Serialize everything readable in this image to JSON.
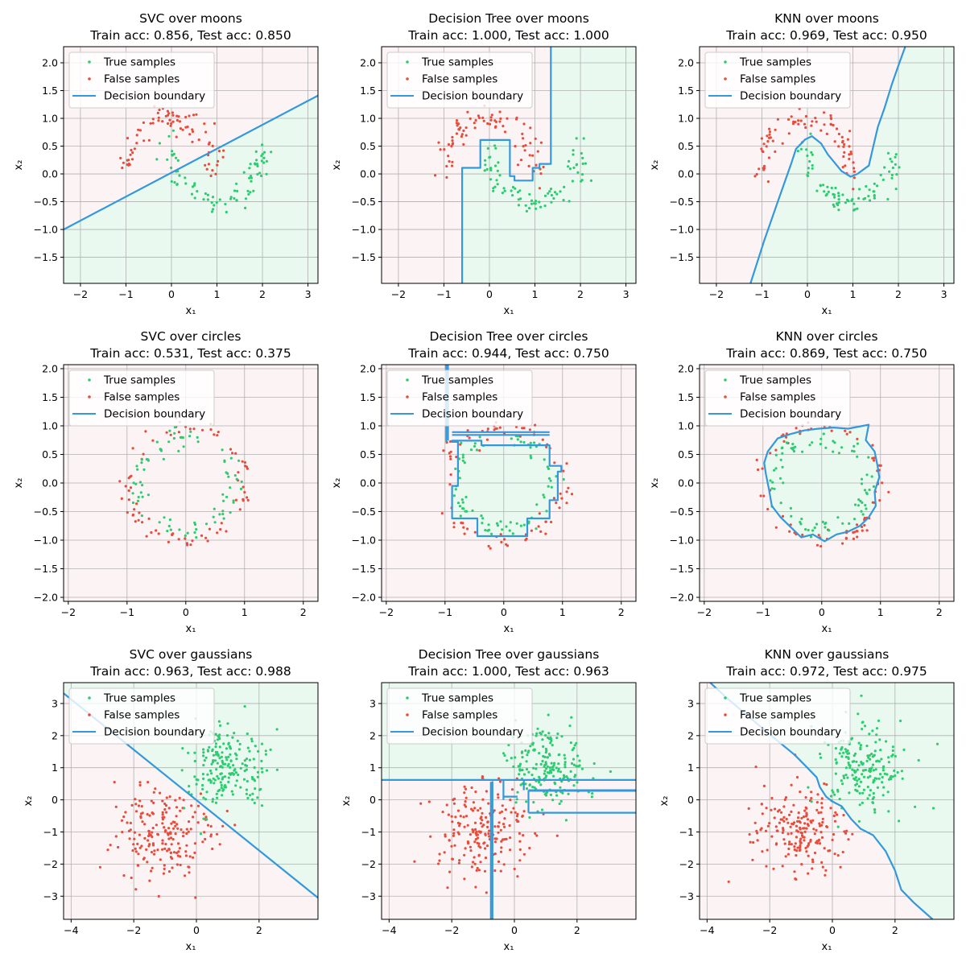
{
  "legend": {
    "true_label": "True samples",
    "false_label": "False samples",
    "boundary_label": "Decision boundary"
  },
  "colors": {
    "true": "#2ecc71",
    "false": "#e74c3c",
    "boundary": "#3498db",
    "true_region": "#eaf9f0",
    "false_region": "#fcf4f4",
    "grid": "#b0b0b0"
  },
  "chart_data": [
    {
      "type": "scatter",
      "title_line1": "SVC over moons",
      "title_line2": "Train acc: 0.856, Test acc: 0.850",
      "xlabel": "x₁",
      "ylabel": "x₂",
      "xlim": [
        -2.37,
        3.22
      ],
      "ylim": [
        -1.97,
        2.29
      ],
      "xticks": [
        -2,
        -1,
        0,
        1,
        2,
        3
      ],
      "yticks": [
        -1.5,
        -1.0,
        -0.5,
        0.0,
        0.5,
        1.0,
        1.5,
        2.0
      ],
      "ytick_decimals": 1,
      "dataset": "moons",
      "boundary_lines": [
        [
          [
            -2.37,
            -1.0
          ],
          [
            3.22,
            1.41
          ]
        ]
      ],
      "true_region": [
        [
          -2.37,
          -1.97
        ],
        [
          3.22,
          -1.97
        ],
        [
          3.22,
          1.41
        ],
        [
          -2.37,
          -1.0
        ]
      ]
    },
    {
      "type": "scatter",
      "title_line1": "Decision Tree over moons",
      "title_line2": "Train acc: 1.000, Test acc: 1.000",
      "xlabel": "x₁",
      "ylabel": "x₂",
      "xlim": [
        -2.37,
        3.22
      ],
      "ylim": [
        -1.97,
        2.29
      ],
      "xticks": [
        -2,
        -1,
        0,
        1,
        2,
        3
      ],
      "yticks": [
        -1.5,
        -1.0,
        -0.5,
        0.0,
        0.5,
        1.0,
        1.5,
        2.0
      ],
      "ytick_decimals": 1,
      "dataset": "moons",
      "boundary_lines": [
        [
          [
            -0.6,
            -1.97
          ],
          [
            -0.6,
            0.11
          ],
          [
            -0.2,
            0.11
          ],
          [
            -0.2,
            0.61
          ],
          [
            0.45,
            0.61
          ],
          [
            0.45,
            -0.04
          ],
          [
            0.55,
            -0.04
          ],
          [
            0.55,
            -0.12
          ],
          [
            0.95,
            -0.12
          ],
          [
            0.95,
            0.11
          ],
          [
            1.1,
            0.11
          ],
          [
            1.1,
            0.18
          ],
          [
            1.35,
            0.18
          ],
          [
            1.35,
            2.29
          ]
        ]
      ],
      "true_region": [
        [
          -0.6,
          -1.97
        ],
        [
          -0.6,
          0.11
        ],
        [
          -0.2,
          0.11
        ],
        [
          -0.2,
          0.61
        ],
        [
          0.45,
          0.61
        ],
        [
          0.45,
          -0.04
        ],
        [
          0.55,
          -0.04
        ],
        [
          0.55,
          -0.12
        ],
        [
          0.95,
          -0.12
        ],
        [
          0.95,
          0.11
        ],
        [
          1.1,
          0.11
        ],
        [
          1.1,
          0.18
        ],
        [
          1.35,
          0.18
        ],
        [
          1.35,
          2.29
        ],
        [
          3.22,
          2.29
        ],
        [
          3.22,
          -1.97
        ]
      ]
    },
    {
      "type": "scatter",
      "title_line1": "KNN over moons",
      "title_line2": "Train acc: 0.969, Test acc: 0.950",
      "xlabel": "x₁",
      "ylabel": "x₂",
      "xlim": [
        -2.37,
        3.22
      ],
      "ylim": [
        -1.97,
        2.29
      ],
      "xticks": [
        -2,
        -1,
        0,
        1,
        2,
        3
      ],
      "yticks": [
        -1.5,
        -1.0,
        -0.5,
        0.0,
        0.5,
        1.0,
        1.5,
        2.0
      ],
      "ytick_decimals": 1,
      "dataset": "moons",
      "boundary_lines": [
        [
          [
            -1.25,
            -1.97
          ],
          [
            -0.95,
            -1.2
          ],
          [
            -0.65,
            -0.5
          ],
          [
            -0.5,
            -0.15
          ],
          [
            -0.35,
            0.2
          ],
          [
            -0.25,
            0.45
          ],
          [
            -0.05,
            0.62
          ],
          [
            0.1,
            0.68
          ],
          [
            0.3,
            0.55
          ],
          [
            0.45,
            0.35
          ],
          [
            0.6,
            0.2
          ],
          [
            0.75,
            0.05
          ],
          [
            0.95,
            -0.05
          ],
          [
            1.1,
            0.0
          ],
          [
            1.35,
            0.15
          ],
          [
            1.45,
            0.5
          ],
          [
            1.55,
            0.85
          ],
          [
            1.7,
            1.2
          ],
          [
            1.85,
            1.6
          ],
          [
            2.0,
            1.95
          ],
          [
            2.15,
            2.29
          ]
        ]
      ],
      "true_region": [
        [
          -1.25,
          -1.97
        ],
        [
          -0.95,
          -1.2
        ],
        [
          -0.65,
          -0.5
        ],
        [
          -0.5,
          -0.15
        ],
        [
          -0.35,
          0.2
        ],
        [
          -0.25,
          0.45
        ],
        [
          -0.05,
          0.62
        ],
        [
          0.1,
          0.68
        ],
        [
          0.3,
          0.55
        ],
        [
          0.45,
          0.35
        ],
        [
          0.6,
          0.2
        ],
        [
          0.75,
          0.05
        ],
        [
          0.95,
          -0.05
        ],
        [
          1.1,
          0.0
        ],
        [
          1.35,
          0.15
        ],
        [
          1.45,
          0.5
        ],
        [
          1.55,
          0.85
        ],
        [
          1.7,
          1.2
        ],
        [
          1.85,
          1.6
        ],
        [
          2.0,
          1.95
        ],
        [
          2.15,
          2.29
        ],
        [
          3.22,
          2.29
        ],
        [
          3.22,
          -1.97
        ]
      ]
    },
    {
      "type": "scatter",
      "title_line1": "SVC over circles",
      "title_line2": "Train acc: 0.531, Test acc: 0.375",
      "xlabel": "x₁",
      "ylabel": "x₂",
      "xlim": [
        -2.08,
        2.25
      ],
      "ylim": [
        -2.07,
        2.07
      ],
      "xticks": [
        -2,
        -1,
        0,
        1,
        2
      ],
      "yticks": [
        -2.0,
        -1.5,
        -1.0,
        -0.5,
        0.0,
        0.5,
        1.0,
        1.5,
        2.0
      ],
      "ytick_decimals": 1,
      "dataset": "circles",
      "boundary_lines": [],
      "true_region": []
    },
    {
      "type": "scatter",
      "title_line1": "Decision Tree over circles",
      "title_line2": "Train acc: 0.944, Test acc: 0.750",
      "xlabel": "x₁",
      "ylabel": "x₂",
      "xlim": [
        -2.08,
        2.25
      ],
      "ylim": [
        -2.07,
        2.07
      ],
      "xticks": [
        -2,
        -1,
        0,
        1,
        2
      ],
      "yticks": [
        -2.0,
        -1.5,
        -1.0,
        -0.5,
        0.0,
        0.5,
        1.0,
        1.5,
        2.0
      ],
      "ytick_decimals": 1,
      "dataset": "circles",
      "boundary_lines": [
        [
          [
            -0.98,
            2.07
          ],
          [
            -0.98,
            0.72
          ]
        ],
        [
          [
            -0.95,
            2.07
          ],
          [
            -0.95,
            0.74
          ]
        ],
        [
          [
            -0.88,
            0.89
          ],
          [
            0.78,
            0.89
          ]
        ],
        [
          [
            -0.88,
            0.84
          ],
          [
            0.78,
            0.84
          ]
        ]
      ],
      "true_region": [
        [
          -0.88,
          0.74
        ],
        [
          -0.38,
          0.74
        ],
        [
          -0.38,
          0.66
        ],
        [
          0.78,
          0.66
        ],
        [
          0.78,
          0.3
        ],
        [
          0.98,
          0.3
        ],
        [
          0.98,
          0.2
        ],
        [
          0.92,
          0.2
        ],
        [
          0.92,
          -0.3
        ],
        [
          0.78,
          -0.3
        ],
        [
          0.78,
          -0.62
        ],
        [
          0.4,
          -0.62
        ],
        [
          0.4,
          -0.72
        ],
        [
          0.4,
          -0.93
        ],
        [
          -0.45,
          -0.93
        ],
        [
          -0.45,
          -0.62
        ],
        [
          -0.88,
          -0.62
        ],
        [
          -0.88,
          -0.05
        ],
        [
          -0.78,
          -0.05
        ],
        [
          -0.78,
          0.72
        ],
        [
          -0.88,
          0.72
        ]
      ]
    },
    {
      "type": "scatter",
      "title_line1": "KNN over circles",
      "title_line2": "Train acc: 0.869, Test acc: 0.750",
      "xlabel": "x₁",
      "ylabel": "x₂",
      "xlim": [
        -2.08,
        2.25
      ],
      "ylim": [
        -2.07,
        2.07
      ],
      "xticks": [
        -2,
        -1,
        0,
        1,
        2
      ],
      "yticks": [
        -2.0,
        -1.5,
        -1.0,
        -0.5,
        0.0,
        0.5,
        1.0,
        1.5,
        2.0
      ],
      "ytick_decimals": 1,
      "dataset": "circles",
      "boundary_lines": [],
      "true_region": [
        [
          -0.92,
          0.55
        ],
        [
          -0.75,
          0.78
        ],
        [
          -0.55,
          0.85
        ],
        [
          -0.3,
          0.92
        ],
        [
          -0.05,
          0.95
        ],
        [
          0.2,
          0.97
        ],
        [
          0.45,
          0.95
        ],
        [
          0.7,
          1.0
        ],
        [
          0.8,
          1.02
        ],
        [
          0.75,
          0.75
        ],
        [
          0.9,
          0.55
        ],
        [
          0.95,
          0.3
        ],
        [
          0.98,
          0.1
        ],
        [
          0.9,
          -0.15
        ],
        [
          0.92,
          -0.4
        ],
        [
          0.8,
          -0.6
        ],
        [
          0.65,
          -0.75
        ],
        [
          0.45,
          -0.85
        ],
        [
          0.25,
          -0.9
        ],
        [
          0.05,
          -1.02
        ],
        [
          -0.15,
          -0.9
        ],
        [
          -0.35,
          -0.95
        ],
        [
          -0.5,
          -0.8
        ],
        [
          -0.7,
          -0.6
        ],
        [
          -0.85,
          -0.4
        ],
        [
          -0.9,
          -0.1
        ],
        [
          -0.95,
          0.15
        ],
        [
          -0.98,
          0.35
        ]
      ]
    },
    {
      "type": "scatter",
      "title_line1": "SVC over gaussians",
      "title_line2": "Train acc: 0.963, Test acc: 0.988",
      "xlabel": "x₁",
      "ylabel": "x₂",
      "xlim": [
        -4.24,
        3.88
      ],
      "ylim": [
        -3.72,
        3.65
      ],
      "xticks": [
        -4,
        -2,
        0,
        2
      ],
      "yticks": [
        -3,
        -2,
        -1,
        0,
        1,
        2,
        3
      ],
      "ytick_decimals": 0,
      "dataset": "gaussians",
      "boundary_lines": [
        [
          [
            -4.24,
            3.32
          ],
          [
            3.88,
            -3.05
          ]
        ]
      ],
      "true_region": [
        [
          -4.24,
          3.32
        ],
        [
          -4.24,
          3.65
        ],
        [
          3.88,
          3.65
        ],
        [
          3.88,
          -3.05
        ]
      ]
    },
    {
      "type": "scatter",
      "title_line1": "Decision Tree over gaussians",
      "title_line2": "Train acc: 1.000, Test acc: 0.963",
      "xlabel": "x₁",
      "ylabel": "x₂",
      "xlim": [
        -4.24,
        3.88
      ],
      "ylim": [
        -3.72,
        3.65
      ],
      "xticks": [
        -4,
        -2,
        0,
        2
      ],
      "yticks": [
        -3,
        -2,
        -1,
        0,
        1,
        2,
        3
      ],
      "ytick_decimals": 0,
      "dataset": "gaussians",
      "boundary_lines": [
        [
          [
            -4.24,
            0.62
          ],
          [
            3.88,
            0.62
          ]
        ],
        [
          [
            -0.7,
            -3.72
          ],
          [
            -0.7,
            0.58
          ]
        ],
        [
          [
            -0.75,
            -3.72
          ],
          [
            -0.75,
            0.56
          ]
        ],
        [
          [
            -0.35,
            0.62
          ],
          [
            -0.35,
            0.0
          ]
        ],
        [
          [
            -0.35,
            0.1
          ],
          [
            0.1,
            0.1
          ]
        ],
        [
          [
            0.45,
            0.3
          ],
          [
            3.88,
            0.3
          ]
        ],
        [
          [
            0.45,
            0.28
          ],
          [
            3.88,
            0.28
          ]
        ],
        [
          [
            0.45,
            -0.4
          ],
          [
            3.88,
            -0.4
          ]
        ],
        [
          [
            0.45,
            0.3
          ],
          [
            0.45,
            -0.4
          ]
        ],
        [
          [
            0.3,
            0.6
          ],
          [
            0.3,
            0.3
          ]
        ]
      ],
      "true_region": [
        [
          -4.24,
          3.65
        ],
        [
          3.88,
          3.65
        ],
        [
          3.88,
          0.62
        ],
        [
          -4.24,
          0.62
        ]
      ]
    },
    {
      "type": "scatter",
      "title_line1": "KNN over gaussians",
      "title_line2": "Train acc: 0.972, Test acc: 0.975",
      "xlabel": "x₁",
      "ylabel": "x₂",
      "xlim": [
        -4.24,
        3.88
      ],
      "ylim": [
        -3.72,
        3.65
      ],
      "xticks": [
        -4,
        -2,
        0,
        2
      ],
      "yticks": [
        -3,
        -2,
        -1,
        0,
        1,
        2,
        3
      ],
      "ytick_decimals": 0,
      "dataset": "gaussians",
      "boundary_lines": [
        [
          [
            -3.9,
            3.65
          ],
          [
            -3.4,
            3.2
          ],
          [
            -2.8,
            2.7
          ],
          [
            -2.2,
            2.2
          ],
          [
            -1.7,
            1.8
          ],
          [
            -1.2,
            1.4
          ],
          [
            -0.8,
            1.0
          ],
          [
            -0.5,
            0.7
          ],
          [
            -0.4,
            0.4
          ],
          [
            -0.2,
            0.1
          ],
          [
            0.0,
            -0.05
          ],
          [
            0.3,
            -0.2
          ],
          [
            0.6,
            -0.6
          ],
          [
            0.9,
            -0.9
          ],
          [
            1.3,
            -1.1
          ],
          [
            1.7,
            -1.6
          ],
          [
            2.0,
            -2.2
          ],
          [
            2.2,
            -2.8
          ],
          [
            2.6,
            -3.2
          ],
          [
            3.2,
            -3.72
          ]
        ]
      ],
      "true_region": [
        [
          -3.9,
          3.65
        ],
        [
          -3.4,
          3.2
        ],
        [
          -2.8,
          2.7
        ],
        [
          -2.2,
          2.2
        ],
        [
          -1.7,
          1.8
        ],
        [
          -1.2,
          1.4
        ],
        [
          -0.8,
          1.0
        ],
        [
          -0.5,
          0.7
        ],
        [
          -0.4,
          0.4
        ],
        [
          -0.2,
          0.1
        ],
        [
          0.0,
          -0.05
        ],
        [
          0.3,
          -0.2
        ],
        [
          0.6,
          -0.6
        ],
        [
          0.9,
          -0.9
        ],
        [
          1.3,
          -1.1
        ],
        [
          1.7,
          -1.6
        ],
        [
          2.0,
          -2.2
        ],
        [
          2.2,
          -2.8
        ],
        [
          2.6,
          -3.2
        ],
        [
          3.2,
          -3.72
        ],
        [
          3.88,
          -3.72
        ],
        [
          3.88,
          3.65
        ]
      ]
    }
  ]
}
